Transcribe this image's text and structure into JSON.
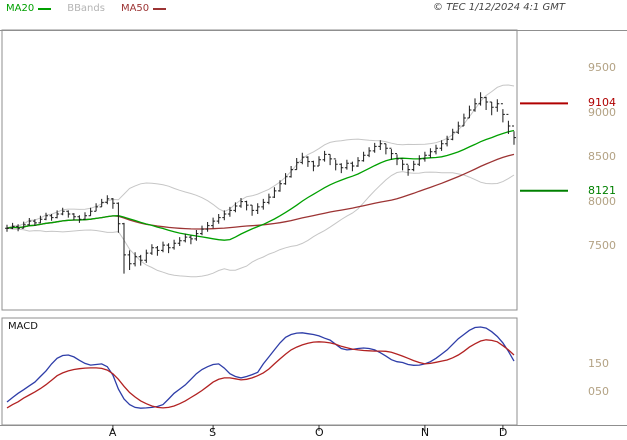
{
  "header": {
    "legend": [
      {
        "label": "MA20",
        "color": "#00a000",
        "swatch": true
      },
      {
        "label": "BBands",
        "color": "#b4b4b4",
        "swatch": false
      },
      {
        "label": "MA50",
        "color": "#9c3434",
        "swatch": true
      }
    ],
    "copyright": "© TEC 1/12/2024 4:1 GMT"
  },
  "chart_data": {
    "type": "ohlc",
    "title": "Daily price chart with MA20, MA50, Bollinger Bands and MACD",
    "bar_color": "#1a1a1a",
    "frame_color": "#8f8f8f",
    "axis_label_color": "#b3a284",
    "price_axis": {
      "min": 6780,
      "max": 9930,
      "ticks": [
        {
          "value": 9500,
          "label": "9500"
        },
        {
          "value": 9000,
          "label": "9000"
        },
        {
          "value": 8500,
          "label": "8500"
        },
        {
          "value": 8000,
          "label": "8000"
        },
        {
          "value": 7500,
          "label": "7500"
        }
      ]
    },
    "levels": [
      {
        "value": 9104,
        "label": "9104",
        "color": "#b00000"
      },
      {
        "value": 8121,
        "label": "8121",
        "color": "#008000"
      }
    ],
    "x_axis": {
      "months": [
        {
          "label": "A",
          "index": 19
        },
        {
          "label": "S",
          "index": 37
        },
        {
          "label": "O",
          "index": 56
        },
        {
          "label": "N",
          "index": 75
        },
        {
          "label": "D",
          "index": 89
        }
      ]
    },
    "indicators": {
      "ma20": {
        "window": 20,
        "color": "#00a000"
      },
      "ma50": {
        "window": 50,
        "color": "#9c3434"
      },
      "bbands": {
        "window": 20,
        "k": 2,
        "color": "#c6c6c6"
      }
    },
    "bars": [
      [
        7740,
        7660,
        7700
      ],
      [
        7760,
        7690,
        7720
      ],
      [
        7745,
        7665,
        7700
      ],
      [
        7775,
        7700,
        7740
      ],
      [
        7815,
        7730,
        7780
      ],
      [
        7800,
        7725,
        7760
      ],
      [
        7840,
        7755,
        7800
      ],
      [
        7875,
        7790,
        7840
      ],
      [
        7860,
        7785,
        7820
      ],
      [
        7900,
        7810,
        7860
      ],
      [
        7930,
        7845,
        7890
      ],
      [
        7900,
        7820,
        7860
      ],
      [
        7870,
        7790,
        7830
      ],
      [
        7845,
        7760,
        7800
      ],
      [
        7880,
        7795,
        7840
      ],
      [
        7930,
        7840,
        7890
      ],
      [
        7980,
        7890,
        7940
      ],
      [
        8030,
        7940,
        7990
      ],
      [
        8070,
        7970,
        8030
      ],
      [
        8040,
        7920,
        7980
      ],
      [
        7990,
        7650,
        7750
      ],
      [
        7760,
        7190,
        7400
      ],
      [
        7450,
        7230,
        7300
      ],
      [
        7430,
        7270,
        7380
      ],
      [
        7400,
        7280,
        7340
      ],
      [
        7460,
        7310,
        7420
      ],
      [
        7520,
        7400,
        7480
      ],
      [
        7500,
        7390,
        7450
      ],
      [
        7550,
        7430,
        7510
      ],
      [
        7530,
        7420,
        7480
      ],
      [
        7570,
        7460,
        7530
      ],
      [
        7600,
        7500,
        7560
      ],
      [
        7640,
        7540,
        7600
      ],
      [
        7620,
        7520,
        7580
      ],
      [
        7680,
        7560,
        7640
      ],
      [
        7730,
        7620,
        7690
      ],
      [
        7770,
        7660,
        7730
      ],
      [
        7820,
        7700,
        7780
      ],
      [
        7860,
        7750,
        7820
      ],
      [
        7900,
        7790,
        7860
      ],
      [
        7940,
        7830,
        7900
      ],
      [
        7990,
        7880,
        7950
      ],
      [
        8040,
        7930,
        8000
      ],
      [
        8010,
        7900,
        7960
      ],
      [
        7960,
        7840,
        7900
      ],
      [
        7980,
        7860,
        7940
      ],
      [
        8030,
        7910,
        7990
      ],
      [
        8090,
        7970,
        8050
      ],
      [
        8160,
        8040,
        8120
      ],
      [
        8240,
        8110,
        8200
      ],
      [
        8320,
        8190,
        8280
      ],
      [
        8400,
        8270,
        8360
      ],
      [
        8490,
        8360,
        8440
      ],
      [
        8550,
        8420,
        8500
      ],
      [
        8510,
        8390,
        8450
      ],
      [
        8460,
        8340,
        8400
      ],
      [
        8510,
        8400,
        8470
      ],
      [
        8570,
        8450,
        8530
      ],
      [
        8530,
        8410,
        8480
      ],
      [
        8470,
        8350,
        8420
      ],
      [
        8430,
        8320,
        8380
      ],
      [
        8470,
        8360,
        8430
      ],
      [
        8450,
        8340,
        8400
      ],
      [
        8500,
        8390,
        8460
      ],
      [
        8560,
        8450,
        8520
      ],
      [
        8610,
        8500,
        8570
      ],
      [
        8660,
        8550,
        8620
      ],
      [
        8690,
        8580,
        8650
      ],
      [
        8650,
        8530,
        8600
      ],
      [
        8590,
        8470,
        8540
      ],
      [
        8530,
        8410,
        8480
      ],
      [
        8470,
        8350,
        8420
      ],
      [
        8410,
        8290,
        8360
      ],
      [
        8460,
        8340,
        8420
      ],
      [
        8520,
        8400,
        8480
      ],
      [
        8560,
        8450,
        8520
      ],
      [
        8600,
        8490,
        8560
      ],
      [
        8640,
        8530,
        8600
      ],
      [
        8690,
        8570,
        8650
      ],
      [
        8740,
        8620,
        8700
      ],
      [
        8820,
        8690,
        8780
      ],
      [
        8900,
        8760,
        8850
      ],
      [
        8990,
        8850,
        8940
      ],
      [
        9080,
        8940,
        9030
      ],
      [
        9160,
        9010,
        9100
      ],
      [
        9230,
        9080,
        9170
      ],
      [
        9180,
        9030,
        9120
      ],
      [
        9120,
        8970,
        9060
      ],
      [
        9150,
        9010,
        9100
      ],
      [
        9040,
        8890,
        8980
      ],
      [
        8910,
        8760,
        8850
      ],
      [
        8790,
        8640,
        8720
      ]
    ],
    "macd_panel": {
      "label": "MACD",
      "axis": {
        "min": -68,
        "max": 314,
        "ticks": [
          {
            "value": 150,
            "label": "150"
          },
          {
            "value": 50,
            "label": "050"
          }
        ]
      },
      "series": [
        {
          "name": "macd",
          "color": "#2e3da8",
          "values": [
            14,
            30,
            45,
            58,
            72,
            85,
            105,
            125,
            150,
            170,
            180,
            182,
            175,
            163,
            152,
            146,
            148,
            150,
            140,
            110,
            60,
            25,
            5,
            -5,
            -8,
            -7,
            -5,
            -2,
            5,
            25,
            45,
            60,
            75,
            95,
            115,
            130,
            140,
            148,
            150,
            135,
            115,
            105,
            100,
            105,
            112,
            120,
            150,
            175,
            200,
            225,
            245,
            255,
            260,
            261,
            258,
            255,
            250,
            242,
            235,
            220,
            205,
            200,
            202,
            205,
            207,
            205,
            200,
            190,
            178,
            165,
            158,
            155,
            148,
            145,
            146,
            150,
            158,
            170,
            185,
            200,
            220,
            240,
            255,
            270,
            280,
            282,
            278,
            265,
            248,
            225,
            195,
            160
          ]
        },
        {
          "name": "signal",
          "color": "#b22222",
          "values": [
            -7,
            5,
            15,
            28,
            39,
            50,
            62,
            76,
            92,
            108,
            118,
            125,
            130,
            133,
            135,
            136,
            136,
            134,
            128,
            115,
            95,
            70,
            48,
            32,
            18,
            8,
            0,
            -5,
            -7,
            -5,
            0,
            8,
            18,
            30,
            42,
            55,
            70,
            85,
            95,
            100,
            100,
            97,
            93,
            95,
            100,
            108,
            118,
            132,
            150,
            168,
            185,
            200,
            210,
            218,
            224,
            228,
            229,
            228,
            225,
            220,
            213,
            208,
            203,
            200,
            198,
            197,
            196,
            196,
            195,
            192,
            185,
            178,
            170,
            162,
            155,
            150,
            152,
            156,
            160,
            164,
            172,
            182,
            195,
            210,
            222,
            232,
            236,
            234,
            229,
            215,
            200,
            182
          ]
        }
      ]
    }
  }
}
